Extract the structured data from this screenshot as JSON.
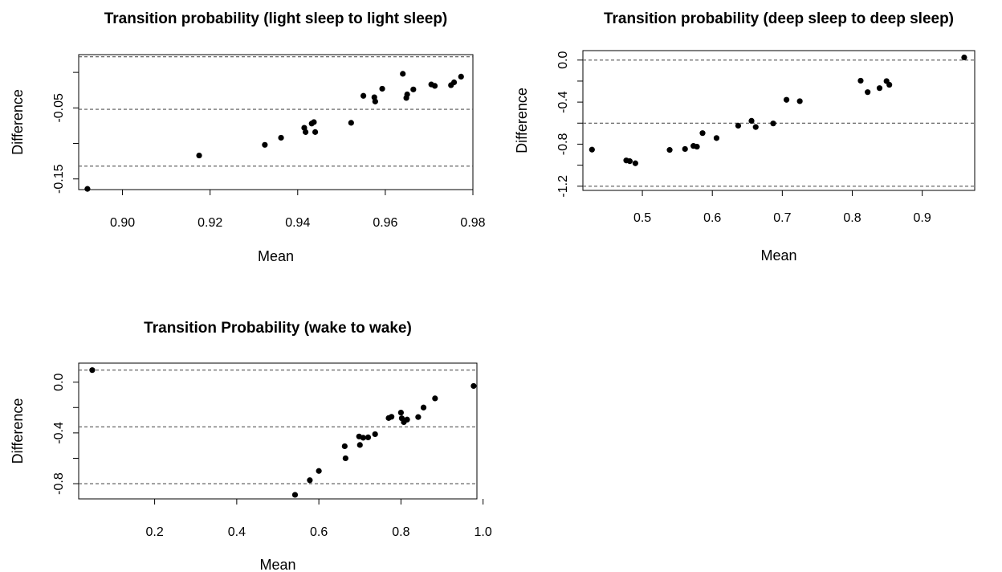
{
  "chart_data": [
    {
      "type": "scatter",
      "title": "Transition probability (light sleep to light sleep)",
      "xlabel": "Mean",
      "ylabel": "Difference",
      "xlim": [
        0.89,
        0.98
      ],
      "ylim": [
        -0.165,
        0.025
      ],
      "xticks": [
        0.9,
        0.92,
        0.94,
        0.96,
        0.98
      ],
      "xtick_labels": [
        "0.90",
        "0.92",
        "0.94",
        "0.96",
        "0.98"
      ],
      "yticks": [
        -0.15,
        -0.05
      ],
      "ytick_labels": [
        "-0.15",
        "-0.05"
      ],
      "y_minor_ticks": [
        -0.1,
        0.0
      ],
      "reference_lines": [
        0.022,
        -0.052,
        -0.132
      ],
      "grid": false,
      "points": [
        [
          0.892,
          -0.164
        ],
        [
          0.9175,
          -0.117
        ],
        [
          0.9325,
          -0.102
        ],
        [
          0.9362,
          -0.092
        ],
        [
          0.9415,
          -0.078
        ],
        [
          0.9418,
          -0.084
        ],
        [
          0.9432,
          -0.072
        ],
        [
          0.9437,
          -0.07
        ],
        [
          0.944,
          -0.084
        ],
        [
          0.9522,
          -0.071
        ],
        [
          0.955,
          -0.033
        ],
        [
          0.9575,
          -0.035
        ],
        [
          0.9577,
          -0.041
        ],
        [
          0.9593,
          -0.023
        ],
        [
          0.964,
          -0.002
        ],
        [
          0.9648,
          -0.036
        ],
        [
          0.965,
          -0.031
        ],
        [
          0.9664,
          -0.024
        ],
        [
          0.9705,
          -0.017
        ],
        [
          0.9713,
          -0.019
        ],
        [
          0.975,
          -0.018
        ],
        [
          0.9757,
          -0.014
        ],
        [
          0.9773,
          -0.006
        ]
      ]
    },
    {
      "type": "scatter",
      "title": "Transition probability (deep sleep to deep sleep)",
      "xlabel": "Mean",
      "ylabel": "Difference",
      "xlim": [
        0.415,
        0.975
      ],
      "ylim": [
        -1.24,
        0.09
      ],
      "xticks": [
        0.5,
        0.6,
        0.7,
        0.8,
        0.9
      ],
      "xtick_labels": [
        "0.5",
        "0.6",
        "0.7",
        "0.8",
        "0.9"
      ],
      "yticks": [
        -1.2,
        -0.8,
        -0.4,
        0.0
      ],
      "ytick_labels": [
        "-1.2",
        "-0.8",
        "-0.4",
        "0.0"
      ],
      "y_minor_ticks": [
        -1.0,
        -0.6,
        -0.2
      ],
      "reference_lines": [
        0.0,
        -0.6,
        -1.2
      ],
      "grid": false,
      "points": [
        [
          0.428,
          -0.852
        ],
        [
          0.477,
          -0.955
        ],
        [
          0.482,
          -0.962
        ],
        [
          0.49,
          -0.982
        ],
        [
          0.539,
          -0.855
        ],
        [
          0.561,
          -0.846
        ],
        [
          0.573,
          -0.817
        ],
        [
          0.578,
          -0.824
        ],
        [
          0.586,
          -0.695
        ],
        [
          0.606,
          -0.742
        ],
        [
          0.637,
          -0.624
        ],
        [
          0.656,
          -0.578
        ],
        [
          0.662,
          -0.637
        ],
        [
          0.687,
          -0.603
        ],
        [
          0.706,
          -0.378
        ],
        [
          0.725,
          -0.391
        ],
        [
          0.812,
          -0.196
        ],
        [
          0.822,
          -0.305
        ],
        [
          0.839,
          -0.267
        ],
        [
          0.849,
          -0.2
        ],
        [
          0.853,
          -0.235
        ],
        [
          0.96,
          0.025
        ]
      ]
    },
    {
      "type": "scatter",
      "title": "Transition Probability (wake to wake)",
      "xlabel": "Mean",
      "ylabel": "Difference",
      "xlim": [
        0.015,
        0.985
      ],
      "ylim": [
        -0.92,
        0.15
      ],
      "xticks": [
        0.2,
        0.4,
        0.6,
        0.8,
        1.0
      ],
      "xtick_labels": [
        "0.2",
        "0.4",
        "0.6",
        "0.8",
        "1.0"
      ],
      "yticks": [
        -0.8,
        -0.4,
        0.0
      ],
      "ytick_labels": [
        "-0.8",
        "-0.4",
        "0.0"
      ],
      "y_minor_ticks": [
        -0.6,
        -0.2
      ],
      "reference_lines": [
        0.095,
        -0.352,
        -0.8
      ],
      "grid": false,
      "points": [
        [
          0.048,
          0.095
        ],
        [
          0.542,
          -0.888
        ],
        [
          0.578,
          -0.773
        ],
        [
          0.6,
          -0.7
        ],
        [
          0.663,
          -0.505
        ],
        [
          0.665,
          -0.6
        ],
        [
          0.698,
          -0.428
        ],
        [
          0.7,
          -0.495
        ],
        [
          0.708,
          -0.438
        ],
        [
          0.72,
          -0.435
        ],
        [
          0.737,
          -0.41
        ],
        [
          0.77,
          -0.283
        ],
        [
          0.777,
          -0.273
        ],
        [
          0.8,
          -0.24
        ],
        [
          0.802,
          -0.285
        ],
        [
          0.807,
          -0.315
        ],
        [
          0.815,
          -0.295
        ],
        [
          0.842,
          -0.275
        ],
        [
          0.855,
          -0.2
        ],
        [
          0.883,
          -0.128
        ],
        [
          0.977,
          -0.03
        ]
      ]
    }
  ]
}
